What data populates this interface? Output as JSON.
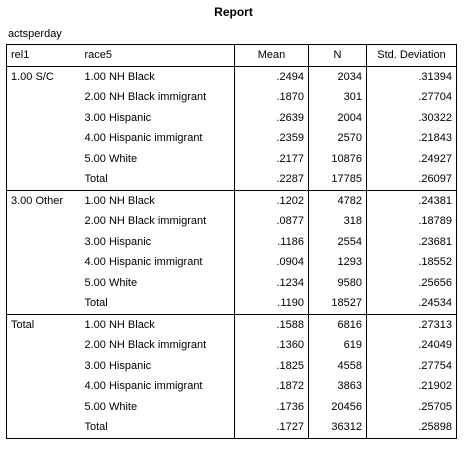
{
  "report": {
    "title": "Report",
    "variable": "actsperday",
    "columns": {
      "rel": "rel1",
      "race": "race5",
      "mean": "Mean",
      "n": "N",
      "sd": "Std. Deviation"
    },
    "groups": [
      {
        "label": "1.00 S/C",
        "rows": [
          {
            "race": "1.00 NH Black",
            "mean": ".2494",
            "n": "2034",
            "sd": ".31394"
          },
          {
            "race": "2.00 NH Black immigrant",
            "mean": ".1870",
            "n": "301",
            "sd": ".27704"
          },
          {
            "race": "3.00 Hispanic",
            "mean": ".2639",
            "n": "2004",
            "sd": ".30322"
          },
          {
            "race": "4.00 Hispanic immigrant",
            "mean": ".2359",
            "n": "2570",
            "sd": ".21843"
          },
          {
            "race": "5.00 White",
            "mean": ".2177",
            "n": "10876",
            "sd": ".24927"
          },
          {
            "race": "Total",
            "mean": ".2287",
            "n": "17785",
            "sd": ".26097"
          }
        ]
      },
      {
        "label": "3.00 Other",
        "rows": [
          {
            "race": "1.00 NH Black",
            "mean": ".1202",
            "n": "4782",
            "sd": ".24381"
          },
          {
            "race": "2.00 NH Black immigrant",
            "mean": ".0877",
            "n": "318",
            "sd": ".18789"
          },
          {
            "race": "3.00 Hispanic",
            "mean": ".1186",
            "n": "2554",
            "sd": ".23681"
          },
          {
            "race": "4.00 Hispanic immigrant",
            "mean": ".0904",
            "n": "1293",
            "sd": ".18552"
          },
          {
            "race": "5.00 White",
            "mean": ".1234",
            "n": "9580",
            "sd": ".25656"
          },
          {
            "race": "Total",
            "mean": ".1190",
            "n": "18527",
            "sd": ".24534"
          }
        ]
      },
      {
        "label": "Total",
        "rows": [
          {
            "race": "1.00 NH Black",
            "mean": ".1588",
            "n": "6816",
            "sd": ".27313"
          },
          {
            "race": "2.00 NH Black immigrant",
            "mean": ".1360",
            "n": "619",
            "sd": ".24049"
          },
          {
            "race": "3.00 Hispanic",
            "mean": ".1825",
            "n": "4558",
            "sd": ".27754"
          },
          {
            "race": "4.00 Hispanic immigrant",
            "mean": ".1872",
            "n": "3863",
            "sd": ".21902"
          },
          {
            "race": "5.00 White",
            "mean": ".1736",
            "n": "20456",
            "sd": ".25705"
          },
          {
            "race": "Total",
            "mean": ".1727",
            "n": "36312",
            "sd": ".25898"
          }
        ]
      }
    ]
  }
}
